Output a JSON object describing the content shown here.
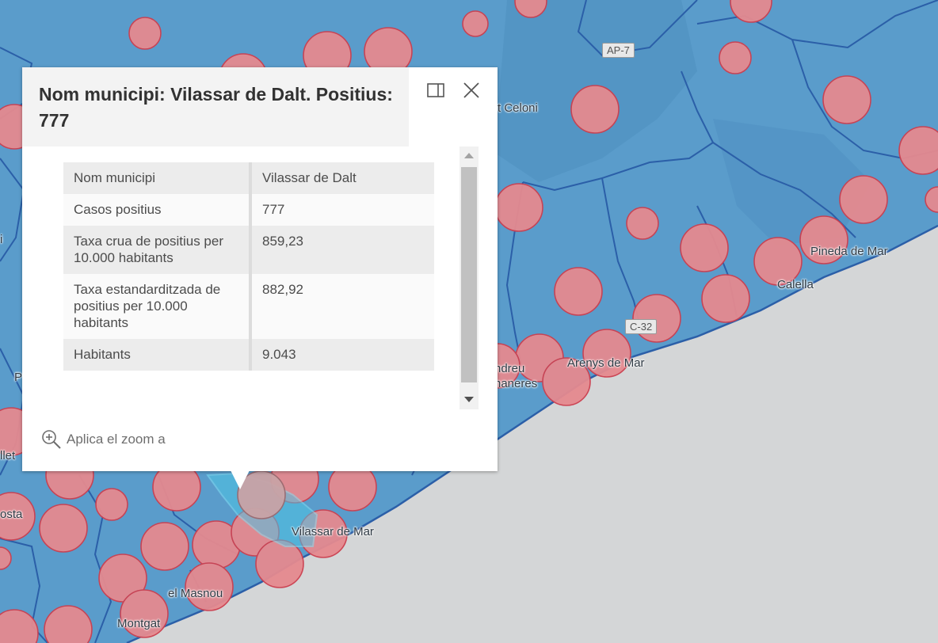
{
  "colors": {
    "sea": "#d4d6d7",
    "land": "#5a9ccb",
    "land_alt": "#4e8fc0",
    "boundary": "#2b5fa8",
    "circle_fill": "#e58a8f",
    "circle_stroke": "#cc3f4f",
    "selected": "#4ec4e4"
  },
  "map": {
    "labels": {
      "sant_celoni": "t Celoni",
      "pineda": "Pineda de Mar",
      "calella": "Calella",
      "arenys": "Arenys de Mar",
      "sant_andreu_1": "ndreu",
      "sant_andreu_2": "naneres",
      "vilassar_mar": "Vilassar de Mar",
      "masnou": "el Masnou",
      "montgat": "Montgat",
      "costa": "osta",
      "llet": "llet",
      "left_i": "i",
      "left_p": "P"
    },
    "roads": {
      "ap7": "AP-7",
      "c32": "C-32"
    }
  },
  "popup": {
    "title": "Nom municipi: Vilassar de Dalt. Positius: 777",
    "dock_icon": "dock-side-icon",
    "close_icon": "close-icon",
    "rows": [
      {
        "key": "Nom municipi",
        "value": "Vilassar de Dalt"
      },
      {
        "key": "Casos positius",
        "value": "777"
      },
      {
        "key": "Taxa crua de positius per 10.000 habitants",
        "value": "859,23"
      },
      {
        "key": "Taxa estandarditzada de positius per 10.000 habitants",
        "value": "882,92"
      },
      {
        "key": "Habitants",
        "value": "9.043"
      }
    ],
    "zoom_icon": "zoom-in-icon",
    "zoom_label": "Aplica el zoom a"
  }
}
